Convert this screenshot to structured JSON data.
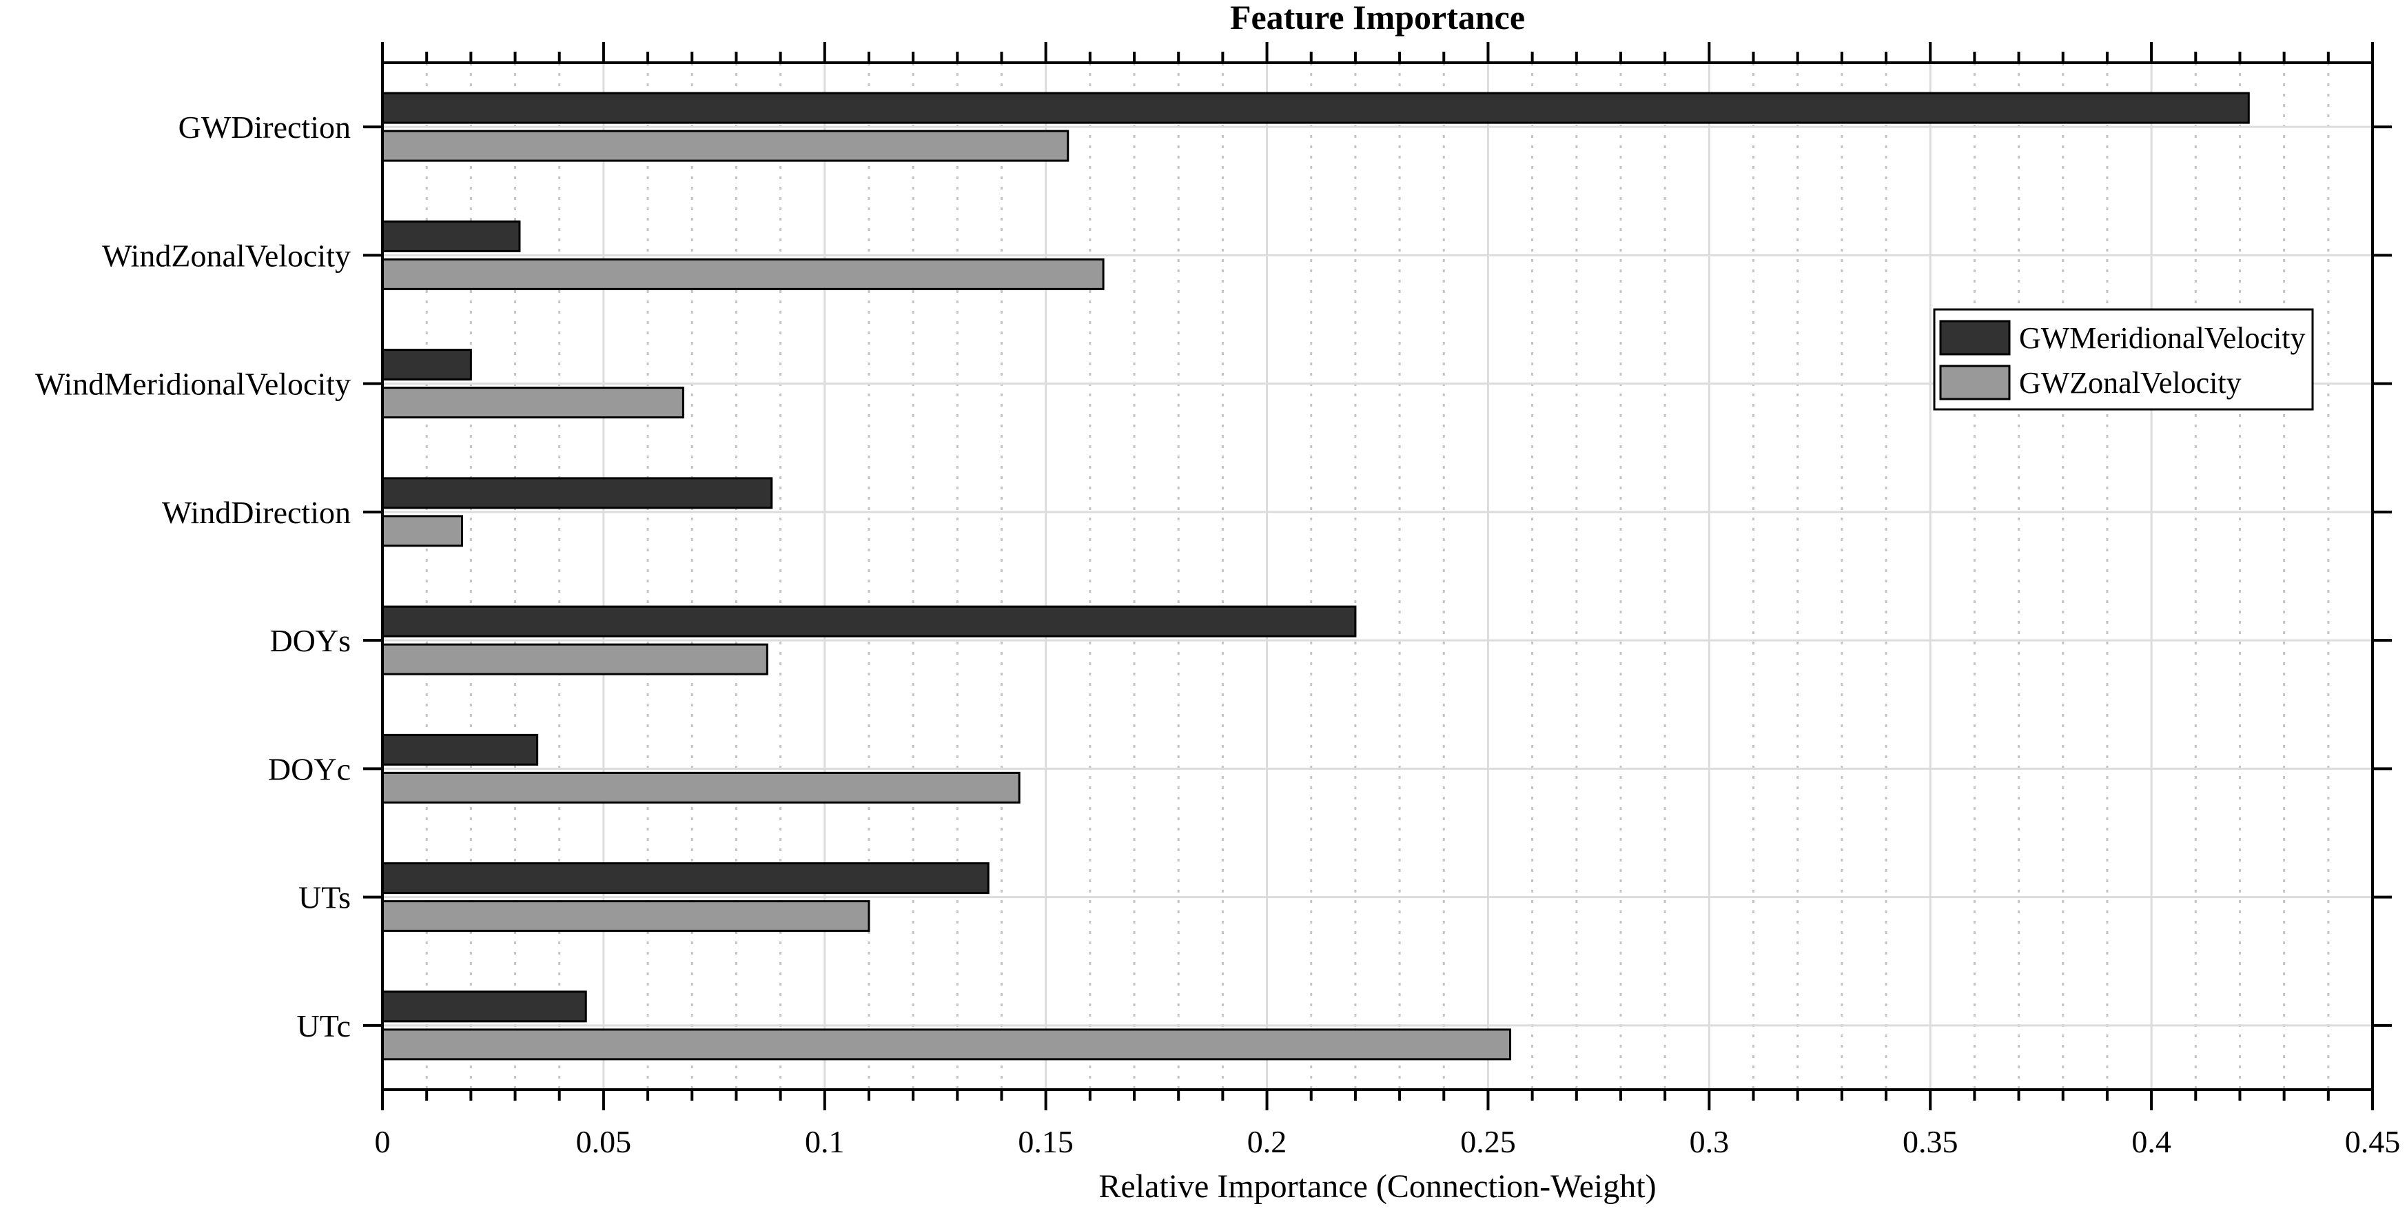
{
  "chart_data": {
    "type": "bar",
    "orientation": "horizontal",
    "title": "Feature Importance",
    "xlabel": "Relative Importance (Connection-Weight)",
    "ylabel": "",
    "category_order": "top_to_bottom",
    "categories": [
      "GWDirection",
      "WindZonalVelocity",
      "WindMeridionalVelocity",
      "WindDirection",
      "DOYs",
      "DOYc",
      "UTs",
      "UTc"
    ],
    "series": [
      {
        "name": "GWMeridionalVelocity",
        "color": "#323232",
        "values": [
          0.422,
          0.031,
          0.02,
          0.088,
          0.22,
          0.035,
          0.137,
          0.046
        ]
      },
      {
        "name": "GWZonalVelocity",
        "color": "#999999",
        "values": [
          0.155,
          0.163,
          0.068,
          0.018,
          0.087,
          0.144,
          0.11,
          0.255
        ]
      }
    ],
    "xlim": [
      0,
      0.45
    ],
    "x_major_ticks": [
      0,
      0.05,
      0.1,
      0.15,
      0.2,
      0.25,
      0.3,
      0.35,
      0.4,
      0.45
    ],
    "x_tick_labels": [
      "0",
      "0.05",
      "0.1",
      "0.15",
      "0.2",
      "0.25",
      "0.3",
      "0.35",
      "0.4",
      "0.45"
    ],
    "x_minor_tick_step": 0.01,
    "grid": {
      "vertical_major": "solid",
      "vertical_minor": "dotted",
      "horizontal_at_category_centers": "solid"
    },
    "legend": {
      "position": "inside-right",
      "entries": [
        {
          "label": "GWMeridionalVelocity",
          "color": "#323232"
        },
        {
          "label": "GWZonalVelocity",
          "color": "#999999"
        }
      ]
    },
    "colors": {
      "bar_edge": "#000000",
      "axis": "#000000",
      "grid_major": "#dcdcdc",
      "grid_minor": "#c4c4c4",
      "background": "#ffffff",
      "text": "#000000"
    }
  }
}
